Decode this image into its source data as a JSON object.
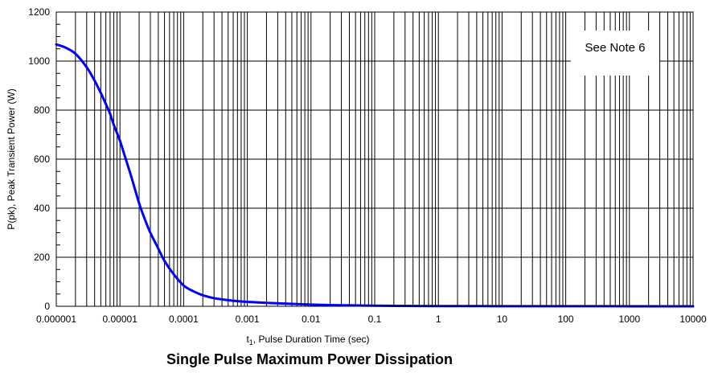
{
  "chart_data": {
    "type": "line",
    "title": "Single Pulse Maximum Power Dissipation",
    "xlabel_main": "t",
    "xlabel_sub": "1",
    "xlabel_rest": ", Pulse Duration Time (sec)",
    "ylabel": "P(pk), Peak Transient Power (W)",
    "x_scale": "log",
    "xlim": [
      1e-06,
      10000
    ],
    "ylim": [
      0,
      1200
    ],
    "x_ticks": [
      "0.000001",
      "0.00001",
      "0.0001",
      "0.001",
      "0.01",
      "0.1",
      "1",
      "10",
      "100",
      "1000",
      "10000"
    ],
    "y_ticks": [
      "0",
      "200",
      "400",
      "600",
      "800",
      "1000",
      "1200"
    ],
    "grid": true,
    "annotation": "See Note 6",
    "series": [
      {
        "color": "#0000ff",
        "x": [
          1e-06,
          1.4e-06,
          2e-06,
          3e-06,
          4e-06,
          5e-06,
          6e-06,
          7e-06,
          8e-06,
          1e-05,
          1.2e-05,
          1.5e-05,
          2e-05,
          2.5e-05,
          3e-05,
          4e-05,
          5e-05,
          7e-05,
          0.0001,
          0.00014,
          0.0002,
          0.0003,
          0.0005,
          0.0007,
          0.001,
          0.002,
          0.005,
          0.01,
          0.02,
          0.05,
          0.1,
          0.3,
          1,
          10,
          100,
          1000,
          10000
        ],
        "y": [
          1068,
          1055,
          1030,
          975,
          920,
          870,
          825,
          785,
          740,
          675,
          610,
          530,
          420,
          350,
          300,
          235,
          185,
          130,
          85,
          62,
          45,
          33,
          25,
          21,
          18,
          14,
          10,
          7,
          5,
          3.5,
          2.5,
          1.5,
          1,
          0.5,
          0.3,
          0.2,
          0.1
        ]
      }
    ]
  }
}
